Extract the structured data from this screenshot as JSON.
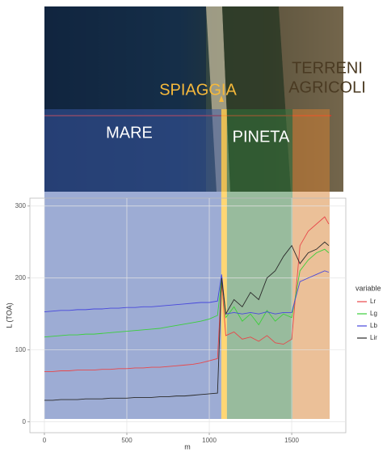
{
  "chart_data": {
    "type": "line",
    "x_label": "m",
    "y_label": "L (TOA)",
    "legend_title": "variable",
    "legend": "right",
    "grid": true,
    "xlim": [
      -88,
      1828
    ],
    "xticks": [
      0,
      500,
      1000,
      1500
    ],
    "ylim": [
      -15,
      311
    ],
    "yticks": [
      0,
      100,
      200,
      300
    ],
    "regions": [
      {
        "label_lines": [
          "MARE"
        ],
        "start": 0,
        "end": 1073,
        "color": "rgba(60,90,170,0.5)",
        "text_color": "#ffffff"
      },
      {
        "label_lines": [
          "SPIAGGIA"
        ],
        "start": 1073,
        "end": 1107,
        "color": "rgba(255,200,70,0.75)",
        "text_color": "#f6b93b"
      },
      {
        "label_lines": [
          "PINETA"
        ],
        "start": 1107,
        "end": 1505,
        "color": "rgba(50,120,60,0.5)",
        "text_color": "#ffffff"
      },
      {
        "label_lines": [
          "TERRENI",
          "AGRICOLI"
        ],
        "start": 1505,
        "end": 1730,
        "color": "rgba(215,130,50,0.5)",
        "text_color": "#4a3a22"
      }
    ],
    "x": [
      0,
      50,
      100,
      150,
      200,
      250,
      300,
      350,
      400,
      450,
      500,
      550,
      600,
      650,
      700,
      750,
      800,
      850,
      900,
      950,
      1000,
      1050,
      1075,
      1100,
      1150,
      1200,
      1250,
      1300,
      1350,
      1400,
      1450,
      1500,
      1550,
      1600,
      1650,
      1700,
      1725
    ],
    "series": [
      {
        "name": "Lr",
        "color": "#e8474a",
        "values": [
          70,
          70,
          71,
          71,
          72,
          72,
          72,
          73,
          73,
          74,
          74,
          75,
          75,
          76,
          76,
          77,
          78,
          79,
          80,
          82,
          85,
          88,
          195,
          120,
          125,
          115,
          118,
          112,
          120,
          110,
          108,
          115,
          245,
          265,
          275,
          285,
          275
        ]
      },
      {
        "name": "Lg",
        "color": "#3bcf3b",
        "values": [
          118,
          119,
          120,
          121,
          121,
          122,
          122,
          123,
          124,
          125,
          126,
          127,
          128,
          129,
          130,
          132,
          134,
          136,
          138,
          140,
          143,
          148,
          200,
          145,
          160,
          140,
          150,
          135,
          155,
          140,
          150,
          145,
          210,
          225,
          235,
          240,
          235
        ]
      },
      {
        "name": "Lb",
        "color": "#4848dc",
        "values": [
          153,
          154,
          155,
          155,
          156,
          156,
          157,
          157,
          158,
          158,
          159,
          159,
          160,
          160,
          161,
          162,
          163,
          164,
          165,
          166,
          166,
          168,
          205,
          150,
          152,
          150,
          152,
          150,
          153,
          150,
          152,
          152,
          195,
          200,
          205,
          210,
          208
        ]
      },
      {
        "name": "Lir",
        "color": "#2a2a2a",
        "values": [
          30,
          30,
          31,
          31,
          31,
          32,
          32,
          32,
          33,
          33,
          33,
          34,
          34,
          34,
          35,
          35,
          36,
          36,
          37,
          38,
          39,
          40,
          200,
          150,
          170,
          160,
          180,
          170,
          200,
          210,
          230,
          245,
          220,
          235,
          240,
          250,
          245
        ]
      }
    ]
  }
}
